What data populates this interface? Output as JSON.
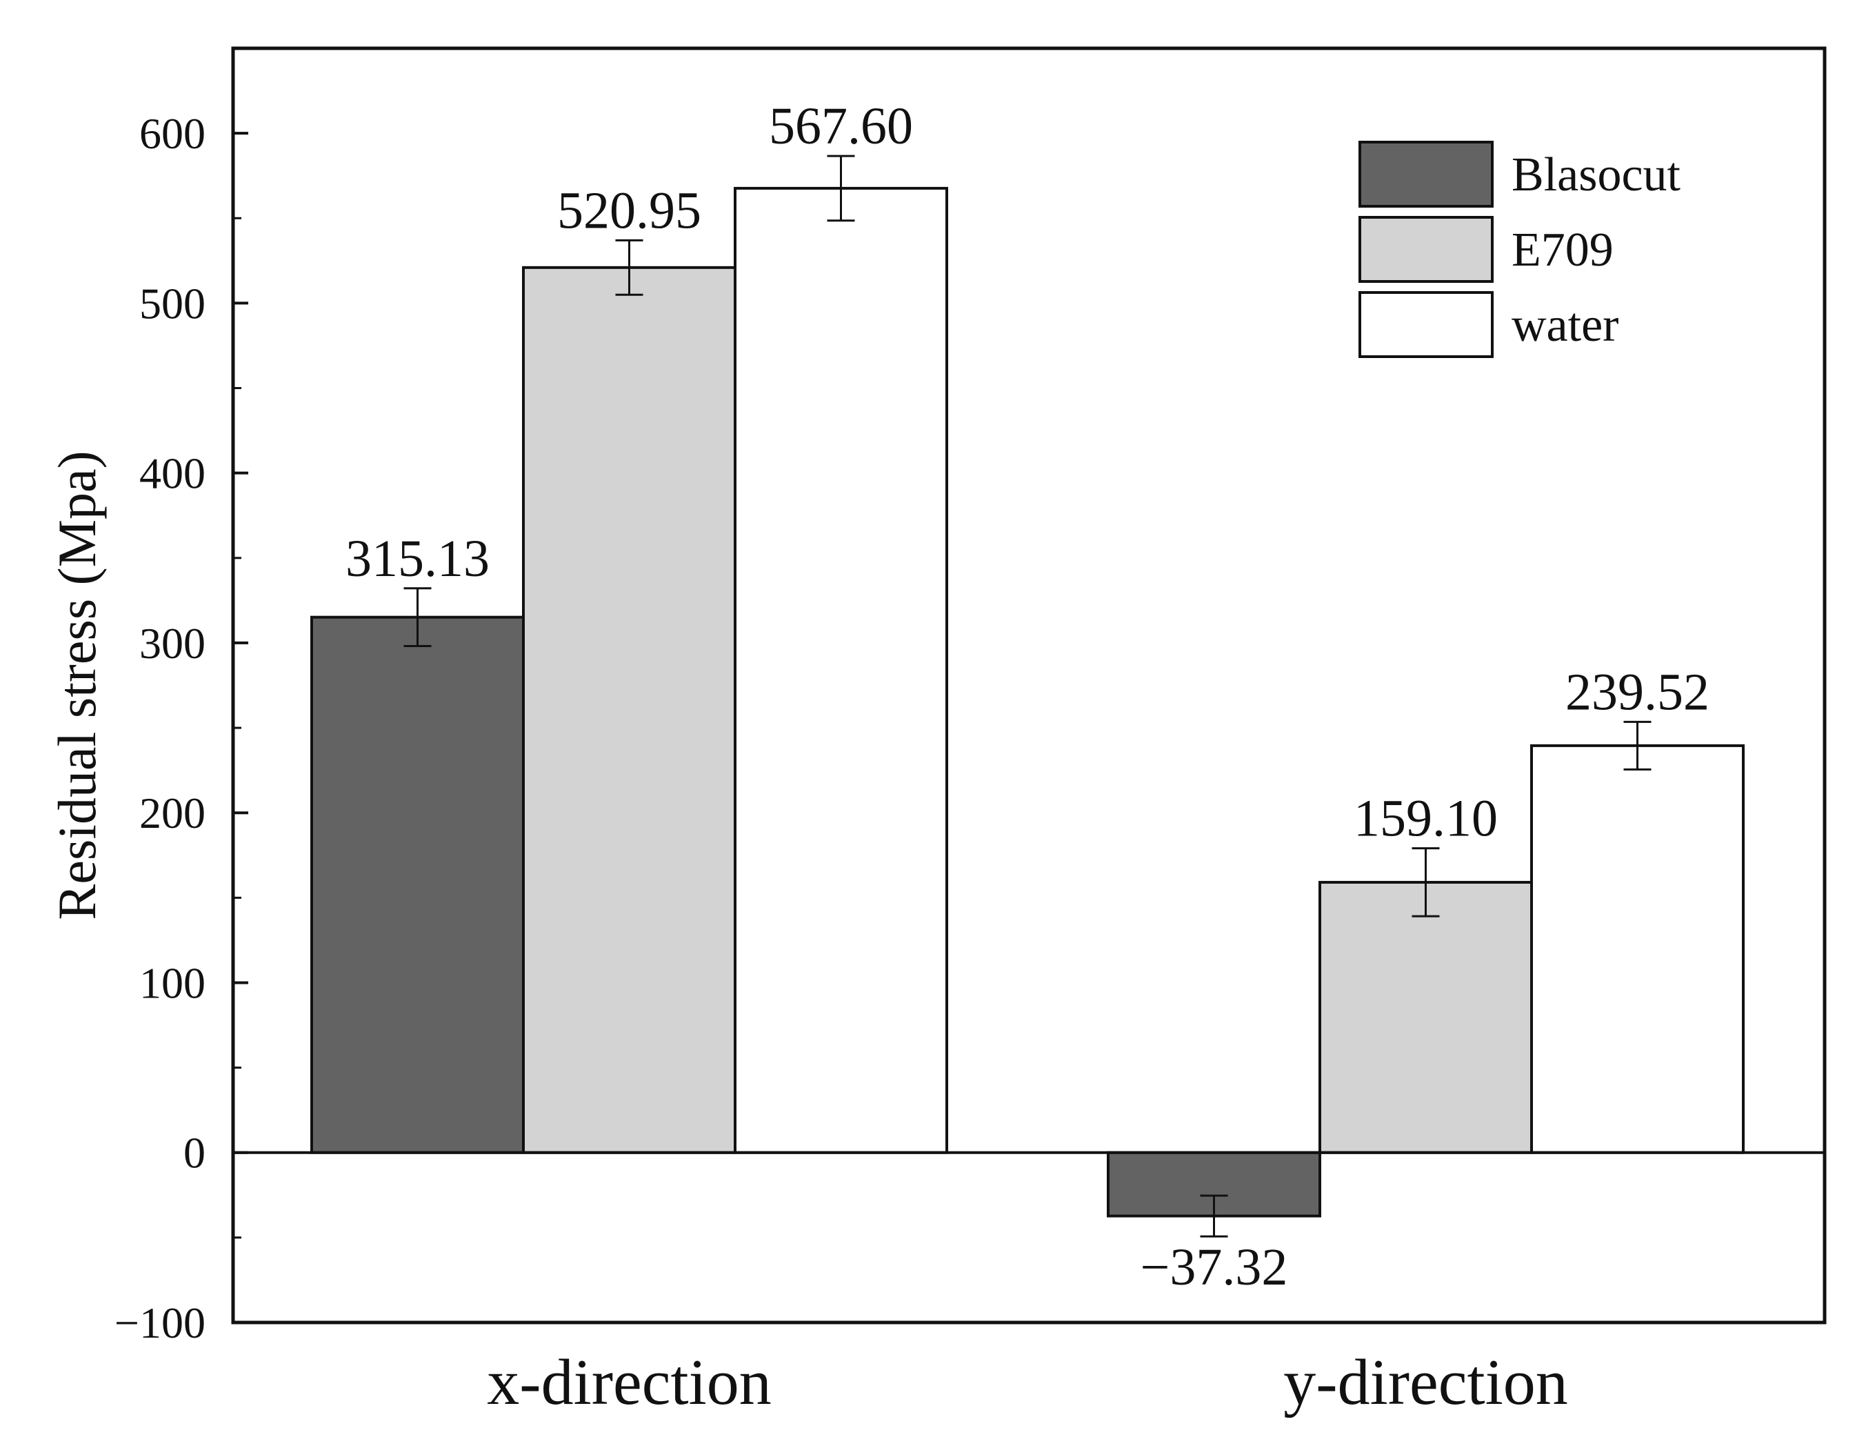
{
  "chart_data": {
    "type": "bar",
    "title": "",
    "xlabel": "",
    "ylabel": "Residual stress (Mpa)",
    "ylim": [
      -100,
      650
    ],
    "yticks": [
      -100,
      0,
      100,
      200,
      300,
      400,
      500,
      600
    ],
    "yticks_labels": [
      "−100",
      "0",
      "100",
      "200",
      "300",
      "400",
      "500",
      "600"
    ],
    "categories": [
      "x-direction",
      "y-direction"
    ],
    "series": [
      {
        "name": "Blasocut",
        "color": "#636363",
        "values": [
          315.13,
          -37.32
        ],
        "errors": [
          17,
          12
        ],
        "labels": [
          "315.13",
          "−37.32"
        ]
      },
      {
        "name": "E709",
        "color": "#d3d3d3",
        "values": [
          520.95,
          159.1
        ],
        "errors": [
          16,
          20
        ],
        "labels": [
          "520.95",
          "159.10"
        ]
      },
      {
        "name": "water",
        "color": "#ffffff",
        "values": [
          567.6,
          239.52
        ],
        "errors": [
          19,
          14
        ],
        "labels": [
          "567.60",
          "239.52"
        ]
      }
    ],
    "legend_position": "top-right",
    "grid": false
  }
}
